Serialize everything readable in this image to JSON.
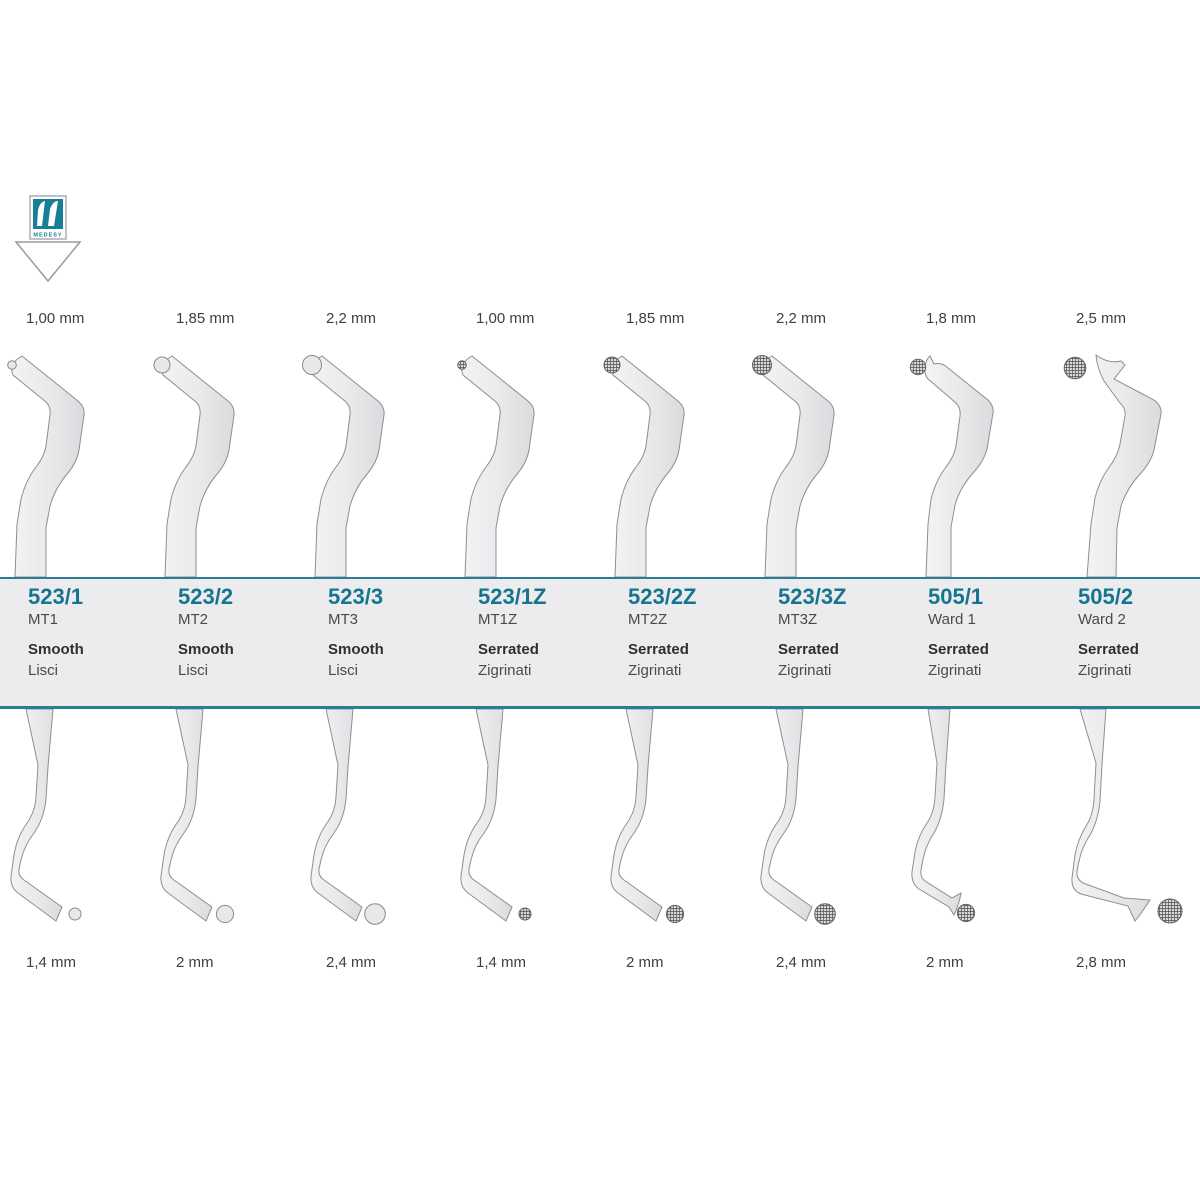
{
  "logo": {
    "brand": "MEDESY",
    "color": "#177e98"
  },
  "icons": {
    "logo": "medesy-logo-icon",
    "arrow": "down-arrow-icon"
  },
  "colors": {
    "accent": "#16748e",
    "band_background": "#ececee",
    "band_border": "#2a7d95",
    "instrument_fill": "#eaeaec",
    "text": "#3f3f3f"
  },
  "columns": [
    {
      "code": "523/1",
      "name": "MT1",
      "finish_en": "Smooth",
      "finish_it": "Lisci",
      "top_size": "1,00 mm",
      "bottom_size": "1,4 mm",
      "serrated": false,
      "shape": "std"
    },
    {
      "code": "523/2",
      "name": "MT2",
      "finish_en": "Smooth",
      "finish_it": "Lisci",
      "top_size": "1,85 mm",
      "bottom_size": "2 mm",
      "serrated": false,
      "shape": "std"
    },
    {
      "code": "523/3",
      "name": "MT3",
      "finish_en": "Smooth",
      "finish_it": "Lisci",
      "top_size": "2,2 mm",
      "bottom_size": "2,4 mm",
      "serrated": false,
      "shape": "std"
    },
    {
      "code": "523/1Z",
      "name": "MT1Z",
      "finish_en": "Serrated",
      "finish_it": "Zigrinati",
      "top_size": "1,00 mm",
      "bottom_size": "1,4 mm",
      "serrated": true,
      "shape": "std"
    },
    {
      "code": "523/2Z",
      "name": "MT2Z",
      "finish_en": "Serrated",
      "finish_it": "Zigrinati",
      "top_size": "1,85 mm",
      "bottom_size": "2 mm",
      "serrated": true,
      "shape": "std"
    },
    {
      "code": "523/3Z",
      "name": "MT3Z",
      "finish_en": "Serrated",
      "finish_it": "Zigrinati",
      "top_size": "2,2 mm",
      "bottom_size": "2,4 mm",
      "serrated": true,
      "shape": "std"
    },
    {
      "code": "505/1",
      "name": "Ward 1",
      "finish_en": "Serrated",
      "finish_it": "Zigrinati",
      "top_size": "1,8 mm",
      "bottom_size": "2 mm",
      "serrated": true,
      "shape": "ward1"
    },
    {
      "code": "505/2",
      "name": "Ward 2",
      "finish_en": "Serrated",
      "finish_it": "Zigrinati",
      "top_size": "2,5 mm",
      "bottom_size": "2,8 mm",
      "serrated": true,
      "shape": "ward2"
    }
  ]
}
